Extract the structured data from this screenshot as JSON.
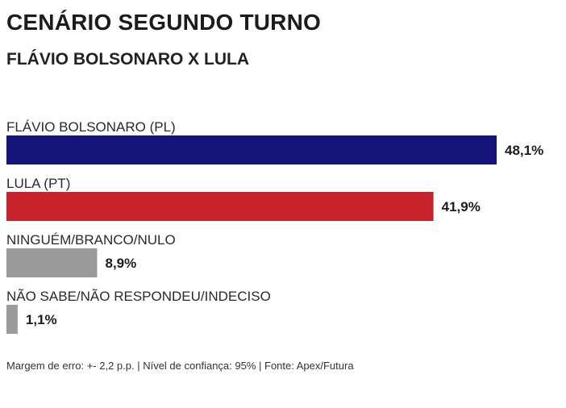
{
  "header": {
    "title": "CENÁRIO SEGUNDO TURNO",
    "subtitle": "FLÁVIO BOLSONARO X LULA"
  },
  "chart_data": {
    "type": "bar",
    "orientation": "horizontal",
    "title": "CENÁRIO SEGUNDO TURNO",
    "subtitle": "FLÁVIO BOLSONARO X LULA",
    "categories": [
      "FLÁVIO BOLSONARO (PL)",
      "LULA (PT)",
      "NINGUÉM/BRANCO/NULO",
      "NÃO SABE/NÃO RESPONDEU/INDECISO"
    ],
    "values": [
      48.1,
      41.9,
      8.9,
      1.1
    ],
    "value_labels": [
      "48,1%",
      "41,9%",
      "8,9%",
      "1,1%"
    ],
    "colors": [
      "#17147a",
      "#c8222c",
      "#9b9b9b",
      "#9b9b9b"
    ],
    "xlim": [
      0,
      48.1
    ],
    "grid": false,
    "legend": "none"
  },
  "footer": {
    "note": "Margem de erro: +- 2,2 p.p. | Nível de confiança: 95% | Fonte: Apex/Futura"
  }
}
